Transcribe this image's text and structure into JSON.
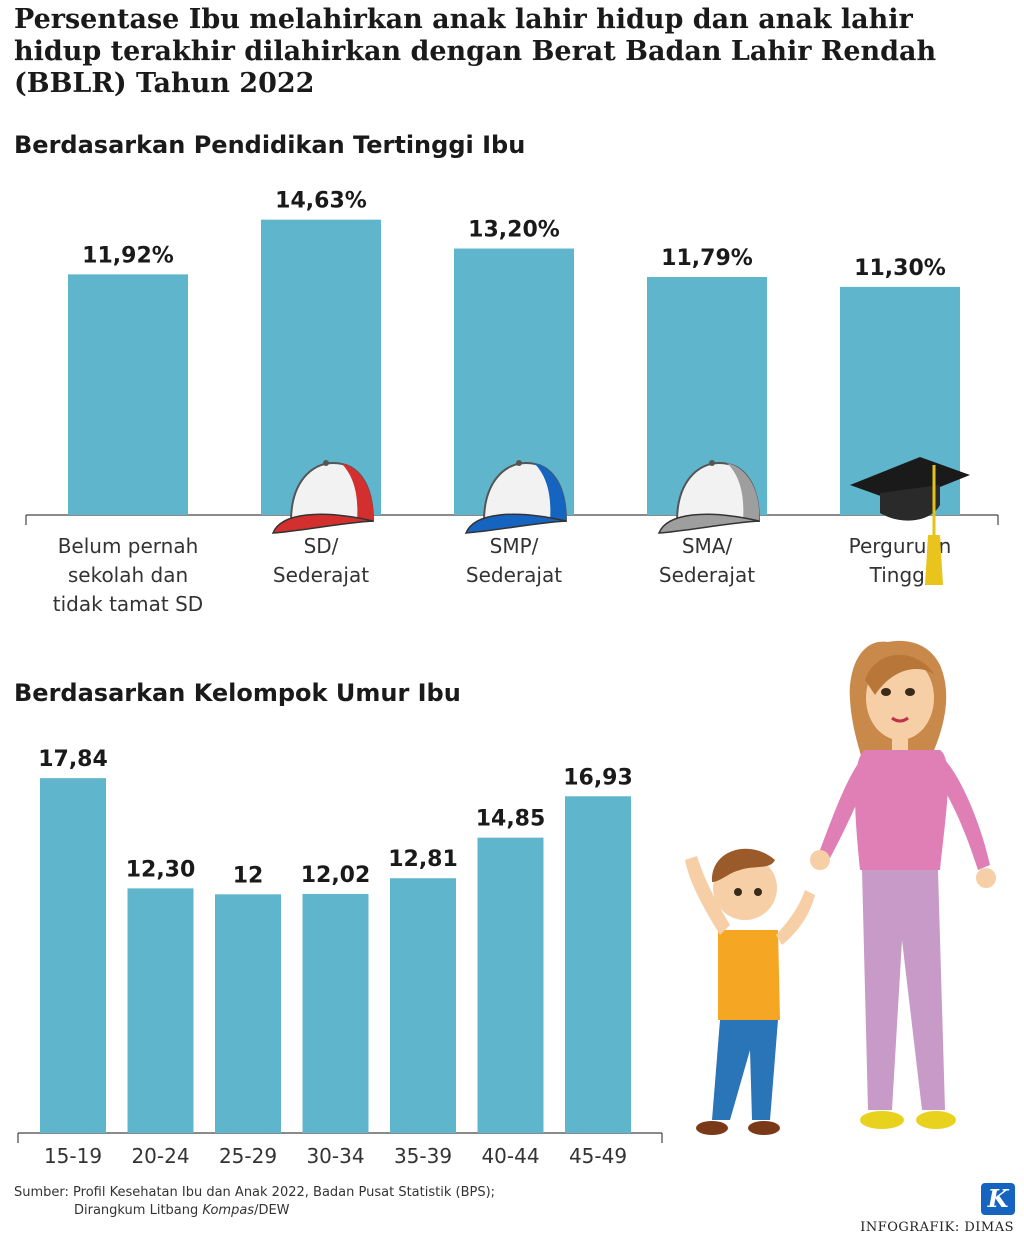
{
  "title": "Persentase Ibu melahirkan anak lahir hidup dan anak lahir hidup terakhir dilahirkan dengan Berat Badan Lahir Rendah (BBLR) Tahun 2022",
  "colors": {
    "bar": "#5fb5cc",
    "axis": "#444444"
  },
  "chart_data": [
    {
      "type": "bar",
      "title": "Berdasarkan Pendidikan Tertinggi Ibu",
      "categories": [
        [
          "Belum pernah",
          "sekolah dan",
          "tidak tamat SD"
        ],
        [
          "SD/",
          "Sederajat"
        ],
        [
          "SMP/",
          "Sederajat"
        ],
        [
          "SMA/",
          "Sederajat"
        ],
        [
          "Perguruan",
          "Tinggi"
        ]
      ],
      "values": [
        11.92,
        14.63,
        13.2,
        11.79,
        11.3
      ],
      "labels": [
        "11,92%",
        "14,63%",
        "13,20%",
        "11,79%",
        "11,30%"
      ],
      "icons": [
        "",
        "red-cap-icon",
        "blue-cap-icon",
        "gray-cap-icon",
        "graduation-cap-icon"
      ]
    },
    {
      "type": "bar",
      "title": "Berdasarkan Kelompok Umur Ibu",
      "categories": [
        "15-19",
        "20-24",
        "25-29",
        "30-34",
        "35-39",
        "40-44",
        "45-49"
      ],
      "values": [
        17.84,
        12.3,
        12,
        12.02,
        12.81,
        14.85,
        16.93
      ],
      "labels": [
        "17,84",
        "12,30",
        "12",
        "12,02",
        "12,81",
        "14,85",
        "16,93"
      ]
    }
  ],
  "source": {
    "line1": "Sumber: Profil Kesehatan Ibu dan Anak 2022, Badan Pusat Statistik (BPS);",
    "line2_prefix": "Dirangkum Litbang ",
    "line2_italic": "Kompas",
    "line2_suffix": "/DEW"
  },
  "credit": "INFOGRAFIK: DIMAS",
  "logo": "K"
}
